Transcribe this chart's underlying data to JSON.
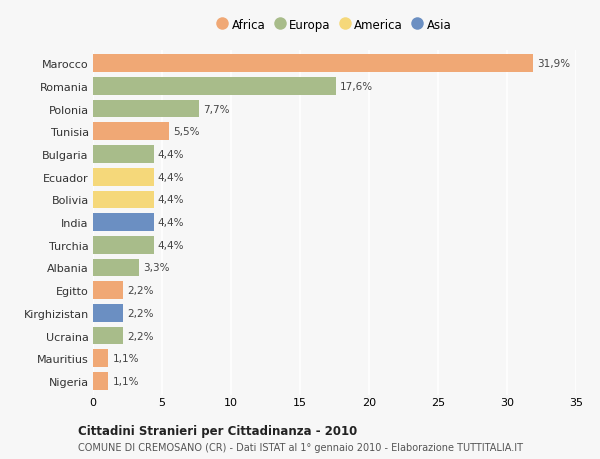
{
  "countries": [
    "Marocco",
    "Romania",
    "Polonia",
    "Tunisia",
    "Bulgaria",
    "Ecuador",
    "Bolivia",
    "India",
    "Turchia",
    "Albania",
    "Egitto",
    "Kirghizistan",
    "Ucraina",
    "Mauritius",
    "Nigeria"
  ],
  "values": [
    31.9,
    17.6,
    7.7,
    5.5,
    4.4,
    4.4,
    4.4,
    4.4,
    4.4,
    3.3,
    2.2,
    2.2,
    2.2,
    1.1,
    1.1
  ],
  "labels": [
    "31,9%",
    "17,6%",
    "7,7%",
    "5,5%",
    "4,4%",
    "4,4%",
    "4,4%",
    "4,4%",
    "4,4%",
    "3,3%",
    "2,2%",
    "2,2%",
    "2,2%",
    "1,1%",
    "1,1%"
  ],
  "continents": [
    "Africa",
    "Europa",
    "Europa",
    "Africa",
    "Europa",
    "America",
    "America",
    "Asia",
    "Europa",
    "Europa",
    "Africa",
    "Asia",
    "Europa",
    "Africa",
    "Africa"
  ],
  "colors": {
    "Africa": "#F0A875",
    "Europa": "#A8BC8A",
    "America": "#F5D87A",
    "Asia": "#6B8FC2"
  },
  "legend_order": [
    "Africa",
    "Europa",
    "America",
    "Asia"
  ],
  "title": "Cittadini Stranieri per Cittadinanza - 2010",
  "subtitle": "COMUNE DI CREMOSANO (CR) - Dati ISTAT al 1° gennaio 2010 - Elaborazione TUTTITALIA.IT",
  "xlim": [
    0,
    35
  ],
  "xticks": [
    0,
    5,
    10,
    15,
    20,
    25,
    30,
    35
  ],
  "background_color": "#f7f7f7",
  "bar_height": 0.78
}
